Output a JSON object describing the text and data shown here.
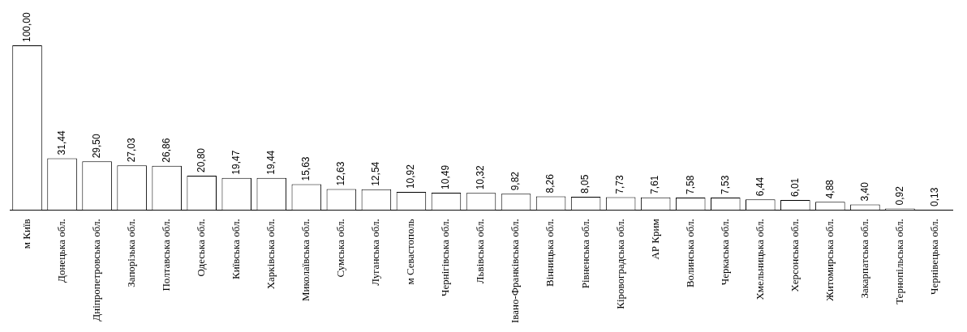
{
  "chart_data": {
    "type": "bar",
    "categories": [
      "м Київ",
      "Донецька обл.",
      "Дніпропетровська обл.",
      "Запорізька обл.",
      "Полтавська обл.",
      "Одеська обл.",
      "Київська обл.",
      "Харківська обл.",
      "Миколаївська обл.",
      "Сумська обл.",
      "Луганська обл.",
      "м Севастополь",
      "Чернігівська обл.",
      "Львівська обл.",
      "Івано-Франківська обл.",
      "Вінницька обл.",
      "Рівненська обл.",
      "Кіровоградська обл.",
      "АР Крим",
      "Волинська обл.",
      "Черкаська обл.",
      "Хмельницька обл.",
      "Херсонська обл.",
      "Житомирська обл.",
      "Закарпатська обл.",
      "Тернопільська обл.",
      "Чернівецька обл."
    ],
    "values": [
      100,
      31.44,
      29.5,
      27.03,
      26.86,
      20.8,
      19.47,
      19.44,
      15.63,
      12.63,
      12.54,
      10.92,
      10.49,
      10.32,
      9.82,
      8.26,
      8.05,
      7.73,
      7.61,
      7.58,
      7.53,
      6.44,
      6.01,
      4.88,
      3.4,
      0.92,
      0.13
    ],
    "value_labels": [
      "100,00",
      "31,44",
      "29,50",
      "27,03",
      "26,86",
      "20,80",
      "19,47",
      "19,44",
      "15,63",
      "12,63",
      "12,54",
      "10,92",
      "10,49",
      "10,32",
      "9,82",
      "8,26",
      "8,05",
      "7,73",
      "7,61",
      "7,58",
      "7,53",
      "6,44",
      "6,01",
      "4,88",
      "3,40",
      "0,92",
      "0,13"
    ],
    "color": "#ffffff",
    "tick_labels": "x",
    "grid": false,
    "legend": false
  }
}
